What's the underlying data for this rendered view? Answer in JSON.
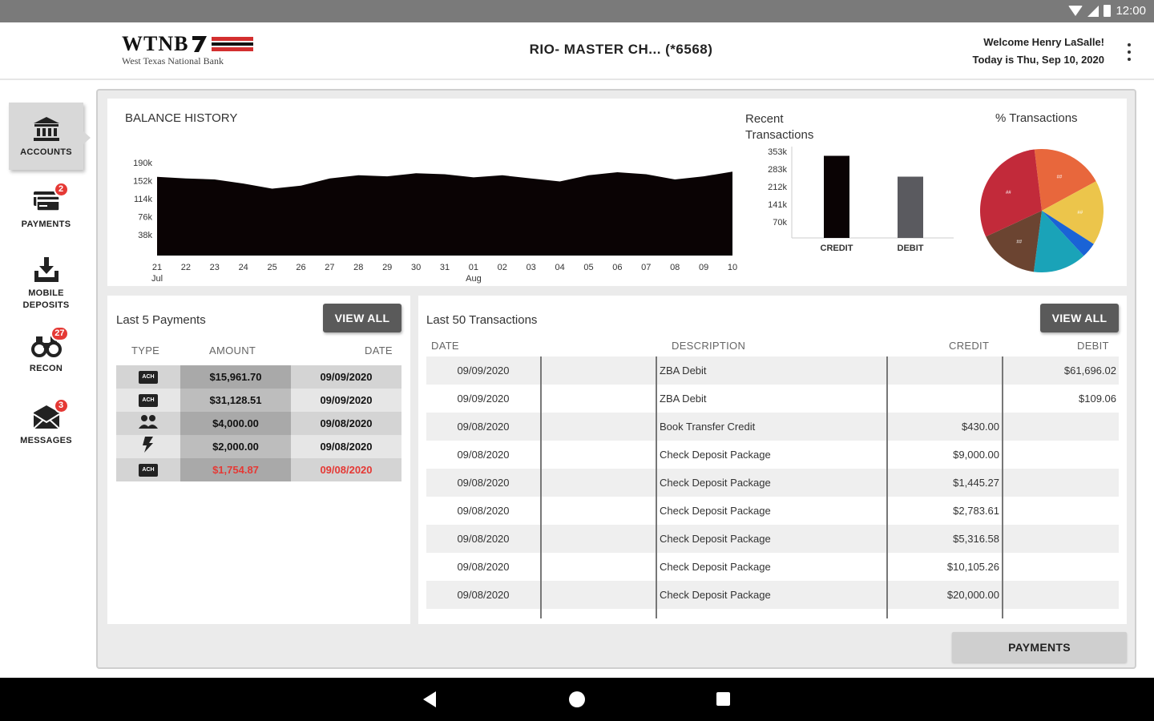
{
  "status_bar": {
    "time": "12:00",
    "icons": [
      "wifi-icon",
      "signal-icon",
      "battery-icon"
    ]
  },
  "header": {
    "logo_text": "WTNB",
    "logo_subtitle": "West Texas National Bank",
    "account_title": "RIO- MASTER CH...  (*6568)",
    "welcome": "Welcome Henry LaSalle!",
    "date_line": "Today is Thu, Sep 10, 2020",
    "menu_icon": "more-vertical-icon"
  },
  "sidebar": {
    "items": [
      {
        "label": "ACCOUNTS",
        "icon": "bank-icon",
        "badge": "",
        "active": true
      },
      {
        "label": "PAYMENTS",
        "icon": "payments-icon",
        "badge": "2",
        "active": false
      },
      {
        "label": "MOBILE\nDEPOSITS",
        "icon": "mobile-deposit-icon",
        "badge": "",
        "active": false
      },
      {
        "label": "RECON",
        "icon": "binoculars-icon",
        "badge": "27",
        "active": false
      },
      {
        "label": "MESSAGES",
        "icon": "envelope-icon",
        "badge": "3",
        "active": false
      }
    ]
  },
  "balance_history": {
    "title": "BALANCE HISTORY"
  },
  "recent_transactions": {
    "title": "Recent Transactions"
  },
  "percent_transactions": {
    "title": "% Transactions"
  },
  "chart_data": [
    {
      "type": "area",
      "title": "BALANCE HISTORY",
      "x": [
        "21",
        "22",
        "23",
        "24",
        "25",
        "26",
        "27",
        "28",
        "29",
        "30",
        "31",
        "01",
        "02",
        "03",
        "04",
        "05",
        "06",
        "07",
        "08",
        "09",
        "10"
      ],
      "x_month_labels": {
        "21": "Jul",
        "01": "Aug"
      },
      "yticks": [
        "190k",
        "152k",
        "114k",
        "76k",
        "38k"
      ],
      "ylim": [
        0,
        190000
      ],
      "values": [
        153000,
        150000,
        148000,
        140000,
        130000,
        136000,
        150000,
        156000,
        154000,
        160000,
        158000,
        152000,
        156000,
        150000,
        144000,
        156000,
        162000,
        158000,
        148000,
        154000,
        163000
      ],
      "color": "#0a0304",
      "grid": false
    },
    {
      "type": "bar",
      "title": "Recent Transactions",
      "categories": [
        "CREDIT",
        "DEBIT"
      ],
      "values": [
        335000,
        250000
      ],
      "colors": [
        "#0a0304",
        "#5a5a5f"
      ],
      "yticks": [
        "353k",
        "283k",
        "212k",
        "141k",
        "70k"
      ],
      "ylim": [
        0,
        353000
      ]
    },
    {
      "type": "pie",
      "title": "% Transactions",
      "slices": [
        {
          "value": 19,
          "color": "#e8673c",
          "label": "##"
        },
        {
          "value": 17,
          "color": "#ecc54b",
          "label": "##"
        },
        {
          "value": 4,
          "color": "#1a63d6",
          "label": ""
        },
        {
          "value": 14,
          "color": "#1aa3b8",
          "label": ""
        },
        {
          "value": 16,
          "color": "#6b4431",
          "label": "##"
        },
        {
          "value": 30,
          "color": "#c22a3a",
          "label": "##"
        }
      ]
    }
  ],
  "payments": {
    "title": "Last 5 Payments",
    "view_all": "VIEW ALL",
    "columns": [
      "TYPE",
      "AMOUNT",
      "DATE"
    ],
    "rows": [
      {
        "type": "ACH",
        "icon": "ach-icon",
        "amount": "$15,961.70",
        "date": "09/09/2020",
        "red": false
      },
      {
        "type": "ACH",
        "icon": "ach-icon",
        "amount": "$31,128.51",
        "date": "09/09/2020",
        "red": false
      },
      {
        "type": "transfer",
        "icon": "people-icon",
        "amount": "$4,000.00",
        "date": "09/08/2020",
        "red": false
      },
      {
        "type": "wire",
        "icon": "lightning-icon",
        "amount": "$2,000.00",
        "date": "09/08/2020",
        "red": false
      },
      {
        "type": "ACH",
        "icon": "ach-icon",
        "amount": "$1,754.87",
        "date": "09/08/2020",
        "red": true
      }
    ]
  },
  "transactions": {
    "title": "Last 50 Transactions",
    "view_all": "VIEW ALL",
    "columns": [
      "DATE",
      "DESCRIPTION",
      "CREDIT",
      "DEBIT"
    ],
    "rows": [
      {
        "date": "09/09/2020",
        "description": "ZBA Debit",
        "credit": "",
        "debit": "$61,696.02"
      },
      {
        "date": "09/09/2020",
        "description": "ZBA Debit",
        "credit": "",
        "debit": "$109.06"
      },
      {
        "date": "09/08/2020",
        "description": "Book Transfer Credit",
        "credit": "$430.00",
        "debit": ""
      },
      {
        "date": "09/08/2020",
        "description": "Check Deposit Package",
        "credit": "$9,000.00",
        "debit": ""
      },
      {
        "date": "09/08/2020",
        "description": "Check Deposit Package",
        "credit": "$1,445.27",
        "debit": ""
      },
      {
        "date": "09/08/2020",
        "description": "Check Deposit Package",
        "credit": "$2,783.61",
        "debit": ""
      },
      {
        "date": "09/08/2020",
        "description": "Check Deposit Package",
        "credit": "$5,316.58",
        "debit": ""
      },
      {
        "date": "09/08/2020",
        "description": "Check Deposit Package",
        "credit": "$10,105.26",
        "debit": ""
      },
      {
        "date": "09/08/2020",
        "description": "Check Deposit Package",
        "credit": "$20,000.00",
        "debit": ""
      }
    ]
  },
  "footer": {
    "payments_button": "PAYMENTS"
  },
  "nav_bar": {
    "icons": [
      "back-icon",
      "home-icon",
      "recents-icon"
    ]
  }
}
